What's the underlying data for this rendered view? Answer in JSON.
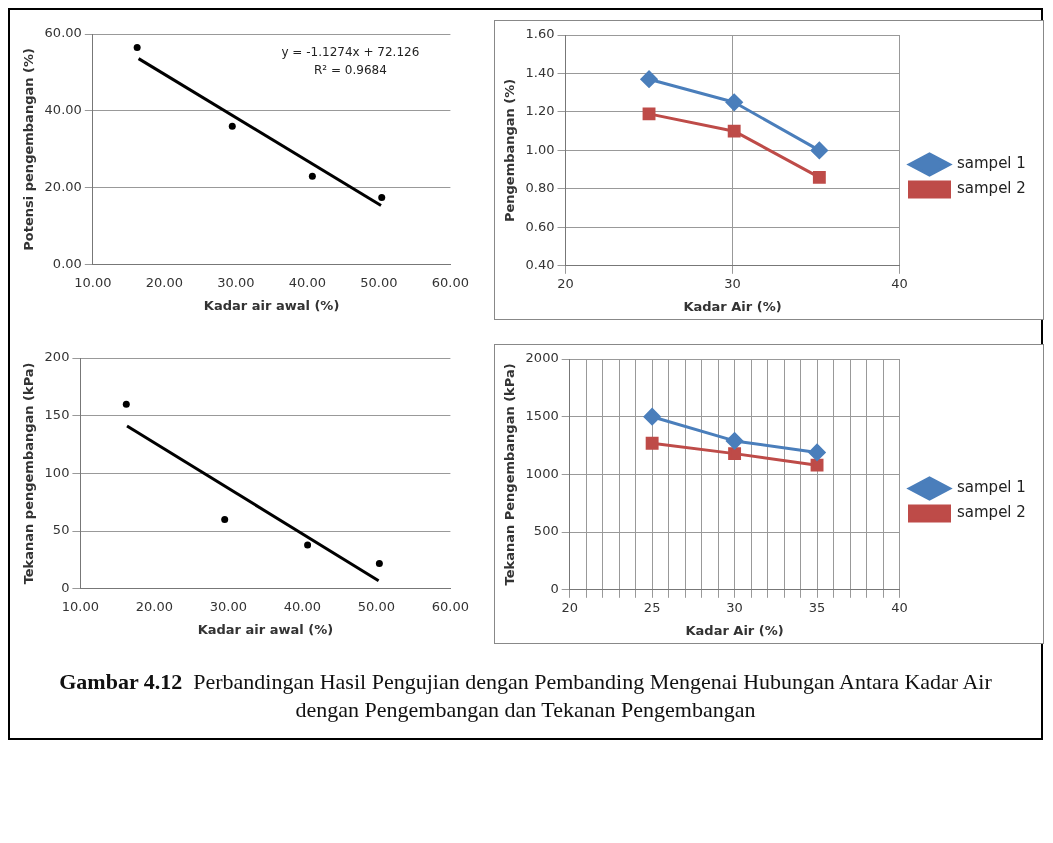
{
  "chart_data": [
    {
      "type": "scatter",
      "xlabel": "Kadar air awal (%)",
      "ylabel": "Potensi pengembangan (%)",
      "xlim": [
        10,
        60
      ],
      "ylim": [
        0,
        60
      ],
      "xticks": [
        {
          "value": 10,
          "label": "10.00"
        },
        {
          "value": 20,
          "label": "20.00"
        },
        {
          "value": 30,
          "label": "30.00"
        },
        {
          "value": 40,
          "label": "40.00"
        },
        {
          "value": 50,
          "label": "50.00"
        },
        {
          "value": 60,
          "label": "60.00"
        }
      ],
      "yticks": [
        {
          "value": 0,
          "label": "0.00"
        },
        {
          "value": 20,
          "label": "20.00"
        },
        {
          "value": 40,
          "label": "40.00"
        },
        {
          "value": 60,
          "label": "60.00"
        }
      ],
      "grid": "y",
      "annotations": [
        "y = -1.1274x + 72.126",
        "R² = 0.9684"
      ],
      "series": [
        {
          "type": "scatter",
          "color": "#000000",
          "marker": "circle",
          "x": [
            16.2,
            29.5,
            40.7,
            50.4
          ],
          "values": [
            56.5,
            36,
            23,
            17.5
          ]
        },
        {
          "type": "line",
          "color": "#000000",
          "marker": "none",
          "x": [
            16.4,
            50.3
          ],
          "values": [
            53.6,
            15.4
          ]
        }
      ]
    },
    {
      "type": "line",
      "xlabel": "Kadar Air (%)",
      "ylabel": "Pengembangan (%)",
      "xlim": [
        20,
        40
      ],
      "ylim": [
        0.4,
        1.6
      ],
      "xticks": [
        20,
        30,
        40
      ],
      "yticks": [
        {
          "value": 0.4,
          "label": "0.40"
        },
        {
          "value": 0.6,
          "label": "0.60"
        },
        {
          "value": 0.8,
          "label": "0.80"
        },
        {
          "value": 1.0,
          "label": "1.00"
        },
        {
          "value": 1.2,
          "label": "1.20"
        },
        {
          "value": 1.4,
          "label": "1.40"
        },
        {
          "value": 1.6,
          "label": "1.60"
        }
      ],
      "grid": true,
      "legend": "right",
      "x": [
        25,
        30.1,
        35.2
      ],
      "series": [
        {
          "name": "sampel 1",
          "color": "#4a7ebb",
          "marker": "diamond",
          "values": [
            1.37,
            1.25,
            1.0
          ]
        },
        {
          "name": "sampel 2",
          "color": "#be4b48",
          "marker": "square",
          "values": [
            1.19,
            1.1,
            0.86
          ]
        }
      ]
    },
    {
      "type": "scatter",
      "xlabel": "Kadar air awal (%)",
      "ylabel": "Tekanan pengembangan (kPa)",
      "xlim": [
        10,
        60
      ],
      "ylim": [
        0,
        200
      ],
      "xticks": [
        {
          "value": 10,
          "label": "10.00"
        },
        {
          "value": 20,
          "label": "20.00"
        },
        {
          "value": 30,
          "label": "30.00"
        },
        {
          "value": 40,
          "label": "40.00"
        },
        {
          "value": 50,
          "label": "50.00"
        },
        {
          "value": 60,
          "label": "60.00"
        }
      ],
      "yticks": [
        0,
        50,
        100,
        150,
        200
      ],
      "grid": "y",
      "series": [
        {
          "type": "scatter",
          "color": "#000000",
          "marker": "circle",
          "x": [
            16.2,
            29.5,
            40.7,
            50.4
          ],
          "values": [
            160,
            60,
            38,
            22
          ]
        },
        {
          "type": "line",
          "color": "#000000",
          "marker": "none",
          "x": [
            16.3,
            50.3
          ],
          "values": [
            141,
            7
          ]
        }
      ]
    },
    {
      "type": "line",
      "xlabel": "Kadar Air (%)",
      "ylabel": "Tekanan Pengembangan (kPa)",
      "xlim": [
        20,
        40
      ],
      "ylim": [
        0,
        2000
      ],
      "xticks": [
        20,
        {
          "value": 21,
          "label": null
        },
        {
          "value": 22,
          "label": null
        },
        {
          "value": 23,
          "label": null
        },
        {
          "value": 24,
          "label": null
        },
        25,
        {
          "value": 26,
          "label": null
        },
        {
          "value": 27,
          "label": null
        },
        {
          "value": 28,
          "label": null
        },
        {
          "value": 29,
          "label": null
        },
        30,
        {
          "value": 31,
          "label": null
        },
        {
          "value": 32,
          "label": null
        },
        {
          "value": 33,
          "label": null
        },
        {
          "value": 34,
          "label": null
        },
        35,
        {
          "value": 36,
          "label": null
        },
        {
          "value": 37,
          "label": null
        },
        {
          "value": 38,
          "label": null
        },
        {
          "value": 39,
          "label": null
        },
        40
      ],
      "yticks": [
        0,
        500,
        1000,
        1500,
        2000
      ],
      "grid": true,
      "legend": "right",
      "x": [
        25,
        30,
        35
      ],
      "series": [
        {
          "name": "sampel 1",
          "color": "#4a7ebb",
          "marker": "diamond",
          "values": [
            1500,
            1290,
            1190
          ]
        },
        {
          "name": "sampel 2",
          "color": "#be4b48",
          "marker": "square",
          "values": [
            1270,
            1180,
            1080
          ]
        }
      ]
    },
    {
      "type": "other",
      "annotations": [
        "Gambar 4.12",
        "Perbandingan Hasil Pengujian dengan Pembanding Mengenai Hubungan Antara Kadar Air dengan Pengembangan dan Tekanan Pengembangan"
      ]
    }
  ]
}
